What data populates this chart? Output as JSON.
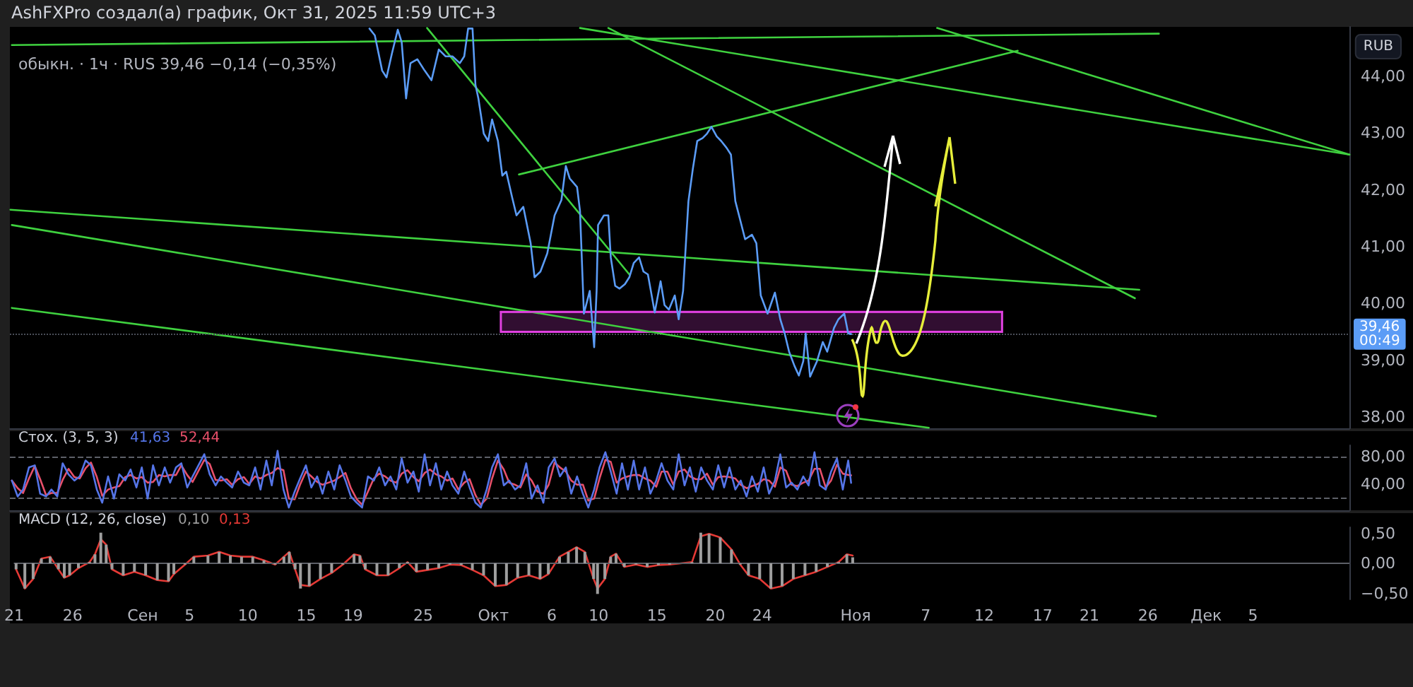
{
  "chart_data": [
    {
      "type": "line",
      "title": "AshFXPro создал(а) график, Окт 31, 2025 11:59 UTC+3",
      "subtitle": "обыкн. · 1ч · RUS 39,46 −0,14 (−0,35%)",
      "ylabel": "RUB",
      "xlim": [
        "2025-08-21T00:00",
        "2025-12-13T06:00"
      ],
      "ylim": [
        37.8,
        44.87
      ],
      "yticks": [
        {
          "value": 38,
          "label": "38,00"
        },
        {
          "value": 39,
          "label": "39,00"
        },
        {
          "value": 40,
          "label": "40,00"
        },
        {
          "value": 41,
          "label": "41,00"
        },
        {
          "value": 42,
          "label": "42,00"
        },
        {
          "value": 43,
          "label": "43,00"
        },
        {
          "value": 44,
          "label": "44,00"
        }
      ],
      "tick_labels": "y",
      "marker": "none",
      "ref_lines": [
        {
          "axis": "y",
          "value": 39.46,
          "label": "39,46\n00:49",
          "color": "#4a4e58",
          "line_style": "dotted"
        }
      ],
      "series": [
        {
          "color": "#5b9cf6",
          "x": [
            "2025-09-20T16:00",
            "2025-09-21T03:00",
            "2025-09-21T18:00",
            "2025-09-22T03:00",
            "2025-09-22T14:00",
            "2025-09-23T02:00",
            "2025-09-23T10:00",
            "2025-09-23T19:00",
            "2025-09-24T04:00",
            "2025-09-24T18:00",
            "2025-09-25T09:00",
            "2025-09-25T23:00",
            "2025-09-26T14:00",
            "2025-09-27T04:00",
            "2025-09-27T18:00",
            "2025-09-28T09:00",
            "2025-09-28T18:00",
            "2025-09-29T02:00",
            "2025-09-29T11:00",
            "2025-09-29T17:00",
            "2025-09-29T23:00",
            "2025-09-30T10:00",
            "2025-09-30T19:00",
            "2025-10-01T03:00",
            "2025-10-01T15:00",
            "2025-10-02T00:00",
            "2025-10-02T08:00",
            "2025-10-02T20:00",
            "2025-10-03T05:00",
            "2025-10-03T19:00",
            "2025-10-04T10:00",
            "2025-10-04T18:00",
            "2025-10-05T06:00",
            "2025-10-05T20:00",
            "2025-10-06T11:00",
            "2025-10-07T01:00",
            "2025-10-07T10:00",
            "2025-10-07T18:00",
            "2025-10-08T09:00",
            "2025-10-08T15:00",
            "2025-10-08T23:00",
            "2025-10-09T11:00",
            "2025-10-09T20:00",
            "2025-10-10T01:00",
            "2025-10-10T04:00",
            "2025-10-10T16:00",
            "2025-10-11T01:00",
            "2025-10-11T06:00",
            "2025-10-11T15:00",
            "2025-10-12T00:00",
            "2025-10-12T11:00",
            "2025-10-12T20:00",
            "2025-10-13T05:00",
            "2025-10-13T16:00",
            "2025-10-14T01:00",
            "2025-10-14T10:00",
            "2025-10-15T00:00",
            "2025-10-15T12:00",
            "2025-10-15T20:00",
            "2025-10-16T05:00",
            "2025-10-16T17:00",
            "2025-10-17T01:00",
            "2025-10-17T10:00",
            "2025-10-17T21:00",
            "2025-10-18T06:00",
            "2025-10-18T15:00",
            "2025-10-19T02:00",
            "2025-10-19T11:00",
            "2025-10-19T20:00",
            "2025-10-20T07:00",
            "2025-10-20T16:00",
            "2025-10-21T03:00",
            "2025-10-21T12:00",
            "2025-10-21T21:00",
            "2025-10-22T06:00",
            "2025-10-22T17:00",
            "2025-10-23T07:00",
            "2025-10-23T16:00",
            "2025-10-24T01:00",
            "2025-10-24T15:00",
            "2025-10-25T06:00",
            "2025-10-25T17:00",
            "2025-10-26T02:00",
            "2025-10-26T11:00",
            "2025-10-26T22:00",
            "2025-10-27T07:00",
            "2025-10-27T16:00",
            "2025-10-27T21:00",
            "2025-10-28T06:00",
            "2025-10-28T20:00",
            "2025-10-29T08:00",
            "2025-10-29T17:00",
            "2025-10-30T07:00",
            "2025-10-30T16:00",
            "2025-10-31T04:00",
            "2025-10-31T12:00",
            "2025-10-31T18:00"
          ],
          "values": [
            44.84,
            44.72,
            44.1,
            43.98,
            44.4,
            44.82,
            44.6,
            43.61,
            44.23,
            44.3,
            44.1,
            43.93,
            44.47,
            44.35,
            44.35,
            44.23,
            44.35,
            44.84,
            44.84,
            43.85,
            43.61,
            42.99,
            42.86,
            43.24,
            42.86,
            42.25,
            42.32,
            41.87,
            41.55,
            41.7,
            41.06,
            40.46,
            40.56,
            40.88,
            41.55,
            41.82,
            42.42,
            42.2,
            42.05,
            41.63,
            39.82,
            40.22,
            39.23,
            40.22,
            41.38,
            41.55,
            41.55,
            40.81,
            40.31,
            40.26,
            40.34,
            40.46,
            40.71,
            40.81,
            40.56,
            40.51,
            39.84,
            40.39,
            39.97,
            39.89,
            40.14,
            39.72,
            40.22,
            41.8,
            42.37,
            42.86,
            42.91,
            42.99,
            43.11,
            42.94,
            42.86,
            42.74,
            42.62,
            41.8,
            41.5,
            41.13,
            41.21,
            41.06,
            40.14,
            39.82,
            40.19,
            39.72,
            39.47,
            39.15,
            38.9,
            38.73,
            38.98,
            39.47,
            38.71,
            38.98,
            39.32,
            39.15,
            39.57,
            39.72,
            39.82,
            39.47,
            39.46
          ]
        },
        {
          "color": "#e040e0",
          "x": [
            "2025-10-01T21:00",
            "2025-11-13T15:00"
          ],
          "values": [
            39.85,
            39.85
          ],
          "lower": [
            39.5,
            39.5
          ],
          "upper": [
            39.85,
            39.85
          ]
        },
        {
          "color": "#3fd13f",
          "x": [
            "2025-08-21T04:00",
            "2025-11-27T00:00"
          ],
          "values": [
            44.55,
            44.75
          ]
        },
        {
          "color": "#3fd13f",
          "x": [
            "2025-10-08T15:00",
            "2025-12-13T06:00"
          ],
          "values": [
            44.85,
            42.62
          ]
        },
        {
          "color": "#3fd13f",
          "x": [
            "2025-10-11T01:00",
            "2025-11-24T23:00"
          ],
          "values": [
            44.85,
            40.09
          ]
        },
        {
          "color": "#3fd13f",
          "x": [
            "2025-11-08T02:00",
            "2025-12-13T06:00"
          ],
          "values": [
            44.85,
            42.62
          ]
        },
        {
          "color": "#3fd13f",
          "x": [
            "2025-10-03T10:00",
            "2025-11-14T23:00"
          ],
          "values": [
            42.27,
            44.45
          ]
        },
        {
          "color": "#3fd13f",
          "x": [
            "2025-09-25T14:00",
            "2025-10-12T20:00"
          ],
          "values": [
            44.85,
            40.51
          ]
        },
        {
          "color": "#3fd13f",
          "x": [
            "2025-08-21T01:00",
            "2025-11-25T08:00"
          ],
          "values": [
            41.65,
            40.24
          ]
        },
        {
          "color": "#3fd13f",
          "x": [
            "2025-08-21T04:00",
            "2025-11-26T18:00"
          ],
          "values": [
            41.38,
            38.01
          ]
        },
        {
          "color": "#3fd13f",
          "x": [
            "2025-08-21T04:00",
            "2025-11-07T09:00"
          ],
          "values": [
            39.92,
            37.81
          ]
        }
      ]
    },
    {
      "type": "line",
      "title": "Стох. (3, 5, 3)",
      "annotations": [
        "41,63",
        "52,44"
      ],
      "xlim": [
        "2025-08-21T00:00",
        "2025-12-13T06:00"
      ],
      "ylim": [
        2,
        96
      ],
      "yticks": [
        {
          "value": 80,
          "label": "80,00"
        },
        {
          "value": 40,
          "label": "40,00"
        }
      ],
      "tick_labels": "y",
      "marker": "none",
      "ref_lines": [
        {
          "axis": "y",
          "value": 80,
          "color": "#5d6068",
          "line_style": "dashed"
        },
        {
          "axis": "y",
          "value": 20,
          "color": "#5d6068",
          "line_style": "dashed"
        }
      ],
      "x": [
        "2025-08-21T04:00",
        "2025-08-21T16:00",
        "2025-08-22T03:00",
        "2025-08-22T15:00",
        "2025-08-23T03:00",
        "2025-08-23T14:00",
        "2025-08-24T02:00",
        "2025-08-24T13:00",
        "2025-08-25T01:00",
        "2025-08-25T12:00",
        "2025-08-26T00:00",
        "2025-08-26T12:00",
        "2025-08-26T23:00",
        "2025-08-27T11:00",
        "2025-08-27T22:00",
        "2025-08-28T10:00",
        "2025-08-28T21:00",
        "2025-08-29T09:00",
        "2025-08-29T21:00",
        "2025-08-30T08:00",
        "2025-08-30T20:00",
        "2025-08-31T07:00",
        "2025-08-31T19:00",
        "2025-09-01T06:00",
        "2025-09-01T18:00",
        "2025-09-02T05:00",
        "2025-09-02T17:00",
        "2025-09-03T05:00",
        "2025-09-03T16:00",
        "2025-09-04T04:00",
        "2025-09-04T15:00",
        "2025-09-05T03:00",
        "2025-09-05T14:00",
        "2025-09-06T02:00",
        "2025-09-06T14:00",
        "2025-09-07T01:00",
        "2025-09-07T13:00",
        "2025-09-08T00:00",
        "2025-09-08T12:00",
        "2025-09-08T23:00",
        "2025-09-09T11:00",
        "2025-09-09T23:00",
        "2025-09-10T10:00",
        "2025-09-10T22:00",
        "2025-09-11T09:00",
        "2025-09-11T21:00",
        "2025-09-12T08:00",
        "2025-09-12T20:00",
        "2025-09-13T08:00",
        "2025-09-13T19:00",
        "2025-09-14T07:00",
        "2025-09-14T18:00",
        "2025-09-15T06:00",
        "2025-09-15T17:00",
        "2025-09-16T05:00",
        "2025-09-16T16:00",
        "2025-09-17T04:00",
        "2025-09-17T16:00",
        "2025-09-18T03:00",
        "2025-09-18T15:00",
        "2025-09-19T02:00",
        "2025-09-19T14:00",
        "2025-09-20T01:00",
        "2025-09-20T13:00",
        "2025-09-21T01:00",
        "2025-09-21T12:00",
        "2025-09-22T00:00",
        "2025-09-22T11:00",
        "2025-09-22T23:00",
        "2025-09-23T10:00",
        "2025-09-23T22:00",
        "2025-09-24T10:00",
        "2025-09-24T21:00",
        "2025-09-25T09:00",
        "2025-09-25T20:00",
        "2025-09-26T08:00",
        "2025-09-26T19:00",
        "2025-09-27T07:00",
        "2025-09-27T18:00",
        "2025-09-28T06:00",
        "2025-09-28T18:00",
        "2025-09-29T05:00",
        "2025-09-29T17:00",
        "2025-09-30T04:00",
        "2025-09-30T16:00",
        "2025-10-01T03:00",
        "2025-10-01T15:00",
        "2025-10-02T03:00",
        "2025-10-02T14:00",
        "2025-10-03T02:00",
        "2025-10-03T13:00",
        "2025-10-04T01:00",
        "2025-10-04T12:00",
        "2025-10-05T00:00",
        "2025-10-05T12:00",
        "2025-10-05T23:00",
        "2025-10-06T11:00",
        "2025-10-06T22:00",
        "2025-10-07T10:00",
        "2025-10-07T21:00",
        "2025-10-08T09:00",
        "2025-10-08T21:00",
        "2025-10-09T08:00",
        "2025-10-09T20:00",
        "2025-10-10T07:00",
        "2025-10-10T19:00",
        "2025-10-11T06:00",
        "2025-10-11T18:00",
        "2025-10-12T05:00",
        "2025-10-12T17:00",
        "2025-10-13T05:00",
        "2025-10-13T16:00",
        "2025-10-14T04:00",
        "2025-10-14T15:00",
        "2025-10-15T03:00",
        "2025-10-15T14:00",
        "2025-10-16T02:00",
        "2025-10-16T14:00",
        "2025-10-17T01:00",
        "2025-10-17T13:00",
        "2025-10-18T00:00",
        "2025-10-18T12:00",
        "2025-10-18T23:00",
        "2025-10-19T11:00",
        "2025-10-19T23:00",
        "2025-10-20T10:00",
        "2025-10-20T22:00",
        "2025-10-21T09:00",
        "2025-10-21T21:00",
        "2025-10-22T08:00",
        "2025-10-22T20:00",
        "2025-10-23T07:00",
        "2025-10-23T19:00",
        "2025-10-24T07:00",
        "2025-10-24T18:00",
        "2025-10-25T06:00",
        "2025-10-25T17:00",
        "2025-10-26T05:00",
        "2025-10-26T16:00",
        "2025-10-27T04:00",
        "2025-10-27T16:00",
        "2025-10-28T03:00",
        "2025-10-28T15:00",
        "2025-10-29T02:00",
        "2025-10-29T14:00",
        "2025-10-30T01:00",
        "2025-10-30T13:00",
        "2025-10-31T01:00",
        "2025-10-31T12:00",
        "2025-10-31T18:00"
      ],
      "series": [
        {
          "color": "#5575e8",
          "values": [
            45,
            22,
            32,
            64,
            67,
            26,
            22,
            32,
            22,
            70,
            54,
            45,
            51,
            74,
            67,
            32,
            13,
            51,
            19,
            54,
            45,
            61,
            35,
            64,
            19,
            67,
            38,
            64,
            42,
            64,
            70,
            35,
            51,
            67,
            83,
            54,
            38,
            51,
            42,
            35,
            58,
            42,
            38,
            64,
            32,
            74,
            38,
            88,
            32,
            6,
            29,
            48,
            67,
            35,
            51,
            26,
            58,
            32,
            67,
            45,
            22,
            13,
            6,
            51,
            45,
            64,
            38,
            51,
            32,
            77,
            42,
            58,
            29,
            83,
            38,
            70,
            32,
            58,
            38,
            26,
            58,
            35,
            13,
            6,
            32,
            64,
            83,
            38,
            45,
            32,
            38,
            70,
            19,
            38,
            13,
            64,
            77,
            51,
            64,
            26,
            51,
            26,
            6,
            32,
            64,
            86,
            58,
            26,
            70,
            32,
            74,
            32,
            64,
            26,
            45,
            70,
            45,
            32,
            83,
            38,
            64,
            29,
            64,
            45,
            32,
            67,
            35,
            64,
            32,
            45,
            22,
            51,
            29,
            64,
            26,
            45,
            83,
            35,
            42,
            32,
            51,
            38,
            86,
            38,
            32,
            58,
            77,
            32,
            74,
            41.63
          ]
        },
        {
          "color": "#e8506a",
          "values": [
            45,
            34,
            27,
            48,
            66,
            47,
            24,
            27,
            27,
            46,
            62,
            50,
            48,
            63,
            71,
            50,
            23,
            32,
            35,
            37,
            50,
            53,
            48,
            50,
            42,
            43,
            53,
            51,
            53,
            53,
            67,
            53,
            43,
            59,
            75,
            69,
            46,
            45,
            47,
            39,
            47,
            50,
            40,
            51,
            48,
            53,
            56,
            63,
            60,
            19,
            18,
            39,
            58,
            51,
            43,
            39,
            42,
            45,
            50,
            56,
            34,
            18,
            10,
            29,
            48,
            55,
            51,
            45,
            42,
            55,
            60,
            50,
            44,
            56,
            61,
            54,
            51,
            45,
            48,
            32,
            42,
            47,
            24,
            10,
            19,
            48,
            74,
            61,
            42,
            39,
            35,
            54,
            45,
            29,
            26,
            39,
            71,
            64,
            58,
            45,
            39,
            39,
            16,
            19,
            48,
            75,
            72,
            42,
            48,
            51,
            53,
            53,
            48,
            45,
            36,
            58,
            58,
            39,
            58,
            61,
            51,
            47,
            47,
            55,
            39,
            50,
            51,
            50,
            48,
            39,
            34,
            37,
            40,
            47,
            45,
            36,
            64,
            59,
            39,
            37,
            42,
            45,
            62,
            62,
            35,
            45,
            68,
            55,
            53,
            52.44
          ]
        }
      ]
    },
    {
      "type": "bar",
      "title": "MACD (12, 26, close)",
      "annotations": [
        "0,10",
        "0,13"
      ],
      "xlim": [
        "2025-08-21T00:00",
        "2025-12-13T06:00"
      ],
      "xticks": [
        {
          "value": "2025-08-21",
          "label": "21"
        },
        {
          "value": "2025-08-26",
          "label": "26"
        },
        {
          "value": "2025-09-01",
          "label": "Сен"
        },
        {
          "value": "2025-09-05",
          "label": "5"
        },
        {
          "value": "2025-09-10",
          "label": "10"
        },
        {
          "value": "2025-09-15",
          "label": "15"
        },
        {
          "value": "2025-09-19",
          "label": "19"
        },
        {
          "value": "2025-09-25",
          "label": "25"
        },
        {
          "value": "2025-10-01",
          "label": "Окт"
        },
        {
          "value": "2025-10-06",
          "label": "6"
        },
        {
          "value": "2025-10-10",
          "label": "10"
        },
        {
          "value": "2025-10-15",
          "label": "15"
        },
        {
          "value": "2025-10-20",
          "label": "20"
        },
        {
          "value": "2025-10-24",
          "label": "24"
        },
        {
          "value": "2025-11-01",
          "label": "Ноя"
        },
        {
          "value": "2025-11-07",
          "label": "7"
        },
        {
          "value": "2025-11-12",
          "label": "12"
        },
        {
          "value": "2025-11-17",
          "label": "17"
        },
        {
          "value": "2025-11-21",
          "label": "21"
        },
        {
          "value": "2025-11-26",
          "label": "26"
        },
        {
          "value": "2025-12-01",
          "label": "Дек"
        },
        {
          "value": "2025-12-05",
          "label": "5"
        }
      ],
      "ylim": [
        -0.6,
        0.6
      ],
      "yticks": [
        {
          "value": 0.5,
          "label": "0,50"
        },
        {
          "value": 0,
          "label": "0,00"
        },
        {
          "value": -0.5,
          "label": "−0,50"
        }
      ],
      "marker": "none",
      "ref_lines": [
        {
          "axis": "y",
          "value": 0,
          "color": "#5d6068"
        }
      ],
      "x": [
        "2025-08-21T04:00",
        "2025-08-21T22:00",
        "2025-08-22T15:00",
        "2025-08-23T08:00",
        "2025-08-24T02:00",
        "2025-08-24T19:00",
        "2025-08-25T07:00",
        "2025-08-25T18:00",
        "2025-08-26T12:00",
        "2025-08-27T11:00",
        "2025-08-27T22:00",
        "2025-08-28T10:00",
        "2025-08-28T21:00",
        "2025-08-29T09:00",
        "2025-08-30T08:00",
        "2025-08-31T07:00",
        "2025-09-01T06:00",
        "2025-09-02T06:00",
        "2025-09-03T05:00",
        "2025-09-03T16:00",
        "2025-09-04T15:00",
        "2025-09-05T09:00",
        "2025-09-06T14:00",
        "2025-09-07T13:00",
        "2025-09-08T12:00",
        "2025-09-09T11:00",
        "2025-09-10T10:00",
        "2025-09-11T09:00",
        "2025-09-12T08:00",
        "2025-09-13T02:00",
        "2025-09-13T13:00",
        "2025-09-14T01:00",
        "2025-09-14T12:00",
        "2025-09-15T06:00",
        "2025-09-16T05:00",
        "2025-09-17T04:00",
        "2025-09-18T03:00",
        "2025-09-19T02:00",
        "2025-09-19T14:00",
        "2025-09-20T01:00",
        "2025-09-21T01:00",
        "2025-09-22T00:00",
        "2025-09-22T23:00",
        "2025-09-23T16:00",
        "2025-09-24T10:00",
        "2025-09-25T09:00",
        "2025-09-26T08:00",
        "2025-09-27T07:00",
        "2025-09-28T06:00",
        "2025-09-29T05:00",
        "2025-09-30T04:00",
        "2025-10-01T04:00",
        "2025-10-02T03:00",
        "2025-10-03T02:00",
        "2025-10-04T01:00",
        "2025-10-05T00:00",
        "2025-10-05T17:00",
        "2025-10-06T16:00",
        "2025-10-07T10:00",
        "2025-10-08T03:00",
        "2025-10-08T20:00",
        "2025-10-09T14:00",
        "2025-10-09T22:00",
        "2025-10-10T13:00",
        "2025-10-11T01:00",
        "2025-10-11T12:00",
        "2025-10-12T05:00",
        "2025-10-13T05:00",
        "2025-10-14T04:00",
        "2025-10-15T03:00",
        "2025-10-16T02:00",
        "2025-10-17T01:00",
        "2025-10-18T00:00",
        "2025-10-18T18:00",
        "2025-10-19T11:00",
        "2025-10-20T10:00",
        "2025-10-21T09:00",
        "2025-10-22T03:00",
        "2025-10-22T20:00",
        "2025-10-23T19:00",
        "2025-10-24T18:00",
        "2025-10-25T17:00",
        "2025-10-26T16:00",
        "2025-10-27T16:00",
        "2025-10-28T15:00",
        "2025-10-29T14:00",
        "2025-10-30T13:00",
        "2025-10-31T06:00",
        "2025-10-31T18:00"
      ],
      "series": [
        {
          "color": "#9e9e9e",
          "values": [
            -0.1,
            -0.42,
            -0.26,
            0.08,
            0.11,
            -0.1,
            -0.24,
            -0.2,
            -0.08,
            0.02,
            0.15,
            0.51,
            0.31,
            -0.1,
            -0.2,
            -0.14,
            -0.2,
            -0.28,
            -0.3,
            -0.18,
            -0.02,
            0.11,
            0.13,
            0.19,
            0.13,
            0.11,
            0.11,
            0.05,
            -0.02,
            0.11,
            0.19,
            -0.1,
            -0.42,
            -0.38,
            -0.26,
            -0.16,
            -0.02,
            0.15,
            0.13,
            -0.1,
            -0.2,
            -0.2,
            -0.08,
            0.02,
            -0.14,
            -0.11,
            -0.08,
            -0.02,
            -0.03,
            -0.11,
            -0.2,
            -0.38,
            -0.36,
            -0.24,
            -0.2,
            -0.26,
            -0.18,
            0.11,
            0.19,
            0.27,
            0.19,
            -0.26,
            -0.51,
            -0.26,
            0.11,
            0.16,
            -0.06,
            -0.02,
            -0.06,
            -0.03,
            -0.02,
            0.0,
            0.02,
            0.51,
            0.49,
            0.43,
            0.23,
            -0.02,
            -0.2,
            -0.26,
            -0.42,
            -0.38,
            -0.26,
            -0.2,
            -0.14,
            -0.06,
            0.02,
            0.15,
            0.1
          ]
        },
        {
          "type": "line",
          "color": "#e53935",
          "values": [
            -0.1,
            -0.42,
            -0.26,
            0.08,
            0.11,
            -0.1,
            -0.24,
            -0.2,
            -0.08,
            0.02,
            0.15,
            0.4,
            0.31,
            -0.1,
            -0.2,
            -0.14,
            -0.2,
            -0.28,
            -0.3,
            -0.18,
            -0.02,
            0.11,
            0.13,
            0.19,
            0.13,
            0.11,
            0.11,
            0.05,
            -0.02,
            0.11,
            0.19,
            -0.1,
            -0.36,
            -0.38,
            -0.26,
            -0.16,
            -0.02,
            0.15,
            0.13,
            -0.1,
            -0.2,
            -0.2,
            -0.08,
            0.02,
            -0.14,
            -0.11,
            -0.08,
            -0.02,
            -0.03,
            -0.11,
            -0.2,
            -0.38,
            -0.36,
            -0.24,
            -0.2,
            -0.26,
            -0.18,
            0.11,
            0.19,
            0.27,
            0.19,
            -0.26,
            -0.42,
            -0.26,
            0.11,
            0.16,
            -0.06,
            -0.02,
            -0.06,
            -0.03,
            -0.02,
            0.0,
            0.02,
            0.45,
            0.49,
            0.43,
            0.23,
            -0.02,
            -0.2,
            -0.26,
            -0.42,
            -0.38,
            -0.26,
            -0.2,
            -0.14,
            -0.06,
            0.02,
            0.15,
            0.13
          ]
        }
      ]
    }
  ]
}
